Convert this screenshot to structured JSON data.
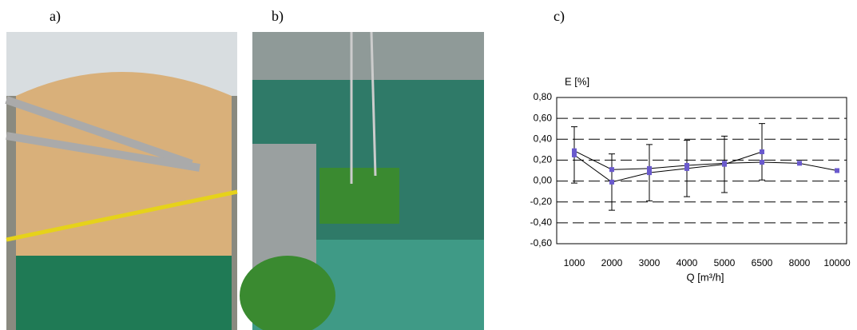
{
  "panels": {
    "a": "a)",
    "b": "b)",
    "c": "c)"
  },
  "chart_data": {
    "type": "line",
    "y_label": "E [%]",
    "x_label": "Q [m³/h]",
    "categories": [
      "1000",
      "2000",
      "3000",
      "4000",
      "5000",
      "6500",
      "8000",
      "10000"
    ],
    "series": [
      {
        "color": "#6a5acd",
        "line_color": "#000000",
        "values": [
          0.25,
          -0.01,
          0.08,
          0.12,
          0.16,
          0.28,
          null,
          null
        ],
        "errors": [
          0.27,
          0.27,
          0.27,
          0.27,
          0.27,
          0.27,
          null,
          null
        ]
      },
      {
        "color": "#6a5acd",
        "line_color": "#000000",
        "values": [
          0.29,
          0.11,
          0.12,
          0.15,
          0.17,
          0.18,
          0.17,
          0.1
        ]
      }
    ],
    "ylim": [
      -0.6,
      0.8
    ],
    "yticks": [
      {
        "value": -0.6,
        "label": "-0,60"
      },
      {
        "value": -0.4,
        "label": "-0,40"
      },
      {
        "value": -0.2,
        "label": "-0,20"
      },
      {
        "value": 0,
        "label": "0,00"
      },
      {
        "value": 0.2,
        "label": "0,20"
      },
      {
        "value": 0.4,
        "label": "0,40"
      },
      {
        "value": 0.6,
        "label": "0,60"
      },
      {
        "value": 0.8,
        "label": "0,80"
      }
    ],
    "grid": true
  }
}
